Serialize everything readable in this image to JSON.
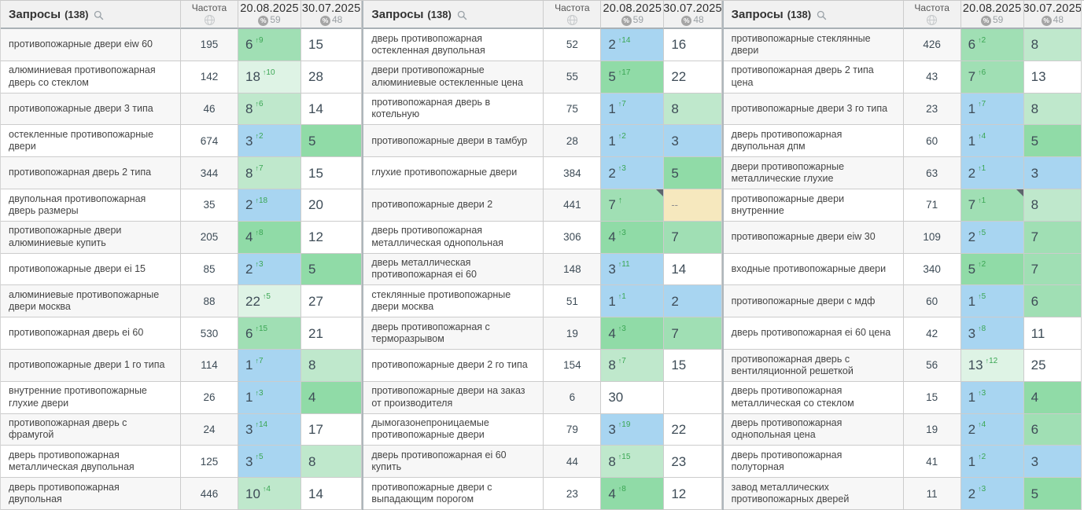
{
  "table": {
    "queries_label": "Запросы",
    "queries_count": "(138)",
    "frequency_label": "Частота",
    "percent_symbol": "%",
    "date_columns": [
      {
        "date": "20.08.2025",
        "visibility": "59"
      },
      {
        "date": "30.07.2025",
        "visibility": "48"
      }
    ],
    "no_data_label": "--"
  },
  "colors": {
    "top3_blue": "#a8d5f1",
    "top5_green": "#90dba7",
    "top7_green": "#a0dfb4",
    "top10_green": "#bfe8cc",
    "top25_green": "#def3e5",
    "no_data_beige": "#f6e8be",
    "delta_green": "#3aa653",
    "zebra_gray": "#f7f7f7"
  },
  "groups": [
    {
      "rows": [
        {
          "query": "противопожарные двери eiw 60",
          "freq": 195,
          "pos1": 6,
          "delta": 9,
          "pos2": 15
        },
        {
          "query": "алюминиевая противопожарная дверь со стеклом",
          "freq": 142,
          "pos1": 18,
          "delta": 10,
          "pos2": 28
        },
        {
          "query": "противопожарные двери 3 типа",
          "freq": 46,
          "pos1": 8,
          "delta": 6,
          "pos2": 14
        },
        {
          "query": "остекленные противопожарные двери",
          "freq": 674,
          "pos1": 3,
          "delta": 2,
          "pos2": 5
        },
        {
          "query": "противопожарная дверь 2 типа",
          "freq": 344,
          "pos1": 8,
          "delta": 7,
          "pos2": 15
        },
        {
          "query": "двупольная противопожарная дверь размеры",
          "freq": 35,
          "pos1": 2,
          "delta": 18,
          "pos2": 20
        },
        {
          "query": "противопожарные двери алюминиевые купить",
          "freq": 205,
          "pos1": 4,
          "delta": 8,
          "pos2": 12
        },
        {
          "query": "противопожарные двери ei 15",
          "freq": 85,
          "pos1": 2,
          "delta": 3,
          "pos2": 5
        },
        {
          "query": "алюминиевые противопожарные двери москва",
          "freq": 88,
          "pos1": 22,
          "delta": 5,
          "pos2": 27
        },
        {
          "query": "противопожарная дверь ei 60",
          "freq": 530,
          "pos1": 6,
          "delta": 15,
          "pos2": 21
        },
        {
          "query": "противопожарные двери 1 го типа",
          "freq": 114,
          "pos1": 1,
          "delta": 7,
          "pos2": 8
        },
        {
          "query": "внутренние противопожарные глухие двери",
          "freq": 26,
          "pos1": 1,
          "delta": 3,
          "pos2": 4
        },
        {
          "query": "противопожарная дверь с фрамугой",
          "freq": 24,
          "pos1": 3,
          "delta": 14,
          "pos2": 17
        },
        {
          "query": "дверь противопожарная металлическая двупольная",
          "freq": 125,
          "pos1": 3,
          "delta": 5,
          "pos2": 8
        },
        {
          "query": "дверь противопожарная двупольная",
          "freq": 446,
          "pos1": 10,
          "delta": 4,
          "pos2": 14
        }
      ]
    },
    {
      "rows": [
        {
          "query": "дверь противопожарная остекленная двупольная",
          "freq": 52,
          "pos1": 2,
          "delta": 14,
          "pos2": 16
        },
        {
          "query": "двери противопожарные алюминиевые остекленные цена",
          "freq": 55,
          "pos1": 5,
          "delta": 17,
          "pos2": 22
        },
        {
          "query": "противопожарная дверь в котельную",
          "freq": 75,
          "pos1": 1,
          "delta": 7,
          "pos2": 8
        },
        {
          "query": "противопожарные двери в тамбур",
          "freq": 28,
          "pos1": 1,
          "delta": 2,
          "pos2": 3
        },
        {
          "query": "глухие противопожарные двери",
          "freq": 384,
          "pos1": 2,
          "delta": 3,
          "pos2": 5
        },
        {
          "query": "противопожарные двери 2",
          "freq": 441,
          "pos1": 7,
          "delta": "arrow",
          "pos2": "--",
          "marker": true
        },
        {
          "query": "дверь противопожарная металлическая однопольная",
          "freq": 306,
          "pos1": 4,
          "delta": 3,
          "pos2": 7
        },
        {
          "query": "дверь металлическая противопожарная ei 60",
          "freq": 148,
          "pos1": 3,
          "delta": 11,
          "pos2": 14
        },
        {
          "query": "стеклянные противопожарные двери москва",
          "freq": 51,
          "pos1": 1,
          "delta": 1,
          "pos2": 2
        },
        {
          "query": "дверь противопожарная с терморазрывом",
          "freq": 19,
          "pos1": 4,
          "delta": 3,
          "pos2": 7
        },
        {
          "query": "противопожарные двери 2 го типа",
          "freq": 154,
          "pos1": 8,
          "delta": 7,
          "pos2": 15
        },
        {
          "query": "противопожарные двери на заказ от производителя",
          "freq": 6,
          "pos1": 30,
          "delta": null,
          "pos2": ""
        },
        {
          "query": "дымогазонепроницаемые противопожарные двери",
          "freq": 79,
          "pos1": 3,
          "delta": 19,
          "pos2": 22
        },
        {
          "query": "дверь противопожарная ei 60 купить",
          "freq": 44,
          "pos1": 8,
          "delta": 15,
          "pos2": 23
        },
        {
          "query": "противопожарные двери с выпадающим порогом",
          "freq": 23,
          "pos1": 4,
          "delta": 8,
          "pos2": 12
        }
      ]
    },
    {
      "rows": [
        {
          "query": "противопожарные стеклянные двери",
          "freq": 426,
          "pos1": 6,
          "delta": 2,
          "pos2": 8
        },
        {
          "query": "противопожарная дверь 2 типа цена",
          "freq": 43,
          "pos1": 7,
          "delta": 6,
          "pos2": 13
        },
        {
          "query": "противопожарные двери 3 го типа",
          "freq": 23,
          "pos1": 1,
          "delta": 7,
          "pos2": 8
        },
        {
          "query": "дверь противопожарная двупольная дпм",
          "freq": 60,
          "pos1": 1,
          "delta": 4,
          "pos2": 5
        },
        {
          "query": "двери противопожарные металлические глухие",
          "freq": 63,
          "pos1": 2,
          "delta": 1,
          "pos2": 3
        },
        {
          "query": "противопожарные двери внутренние",
          "freq": 71,
          "pos1": 7,
          "delta": 1,
          "pos2": 8,
          "marker": true
        },
        {
          "query": "противопожарные двери eiw 30",
          "freq": 109,
          "pos1": 2,
          "delta": 5,
          "pos2": 7
        },
        {
          "query": "входные противопожарные двери",
          "freq": 340,
          "pos1": 5,
          "delta": 2,
          "pos2": 7
        },
        {
          "query": "противопожарные двери с мдф",
          "freq": 60,
          "pos1": 1,
          "delta": 5,
          "pos2": 6
        },
        {
          "query": "дверь противопожарная ei 60 цена",
          "freq": 42,
          "pos1": 3,
          "delta": 8,
          "pos2": 11
        },
        {
          "query": "противопожарная дверь с вентиляционной решеткой",
          "freq": 56,
          "pos1": 13,
          "delta": 12,
          "pos2": 25
        },
        {
          "query": "дверь противопожарная металлическая со стеклом",
          "freq": 15,
          "pos1": 1,
          "delta": 3,
          "pos2": 4
        },
        {
          "query": "дверь противопожарная однопольная цена",
          "freq": 19,
          "pos1": 2,
          "delta": 4,
          "pos2": 6
        },
        {
          "query": "дверь противопожарная полуторная",
          "freq": 41,
          "pos1": 1,
          "delta": 2,
          "pos2": 3
        },
        {
          "query": "завод металлических противопожарных дверей",
          "freq": 11,
          "pos1": 2,
          "delta": 3,
          "pos2": 5
        }
      ]
    }
  ]
}
